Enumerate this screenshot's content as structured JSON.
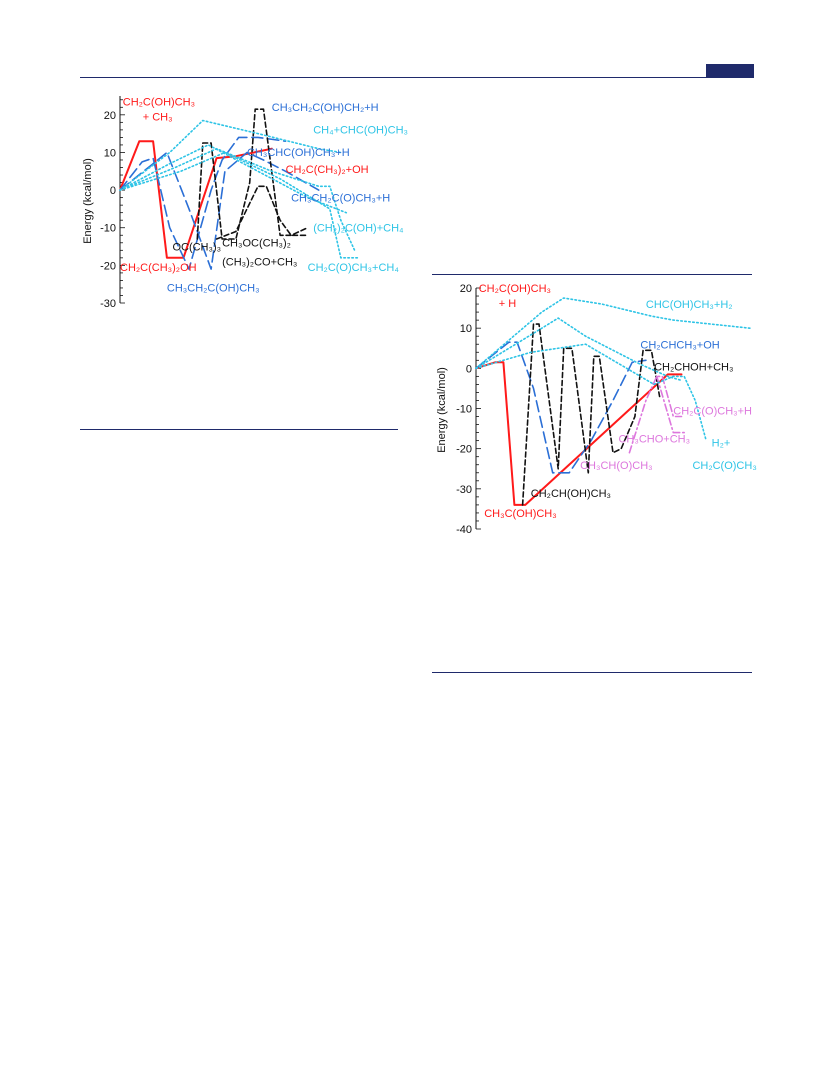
{
  "colors": {
    "red": "#ff1a1a",
    "blue": "#2b6fd6",
    "black": "#111111",
    "cyan": "#2ec4e6",
    "magenta": "#dd77dd",
    "rule": "#1f2a6b"
  },
  "chart_data": [
    {
      "type": "line",
      "ylabel": "Energy (kcal/mol)",
      "ylim": [
        -30,
        25
      ],
      "yticks": [
        20,
        10,
        0,
        -10,
        -20,
        -30
      ],
      "ytick_labels": [
        "20",
        "10",
        "0",
        "-10",
        "-20",
        "-30"
      ],
      "xlim": [
        0,
        100
      ],
      "series": [
        {
          "color": "red",
          "dash": "solid",
          "x": [
            0,
            7,
            12,
            17,
            23,
            35,
            42,
            55
          ],
          "y": [
            0,
            13,
            13,
            -18,
            -18,
            8.5,
            9,
            11
          ]
        },
        {
          "color": "blue",
          "dash": "longdash",
          "x": [
            0,
            8,
            12,
            18,
            25,
            33,
            37,
            43,
            50,
            60
          ],
          "y": [
            0,
            7.5,
            8.5,
            -10,
            -21,
            0,
            8,
            14,
            14,
            13
          ]
        },
        {
          "color": "blue",
          "dash": "longdash",
          "x": [
            0,
            12,
            17,
            25,
            33,
            38,
            46,
            52,
            60,
            72
          ],
          "y": [
            0,
            7,
            10,
            -5,
            -21,
            5,
            10,
            8,
            5,
            0
          ]
        },
        {
          "color": "black",
          "dash": "dash",
          "x": [
            28,
            30,
            33,
            37,
            42,
            47,
            49,
            52,
            58,
            62,
            68
          ],
          "y": [
            -13,
            12.5,
            12.5,
            -13,
            -13,
            2,
            21.5,
            21.5,
            -12,
            -12,
            -10
          ]
        },
        {
          "color": "black",
          "dash": "dash",
          "x": [
            35,
            42,
            50,
            53,
            58,
            62,
            68
          ],
          "y": [
            -13,
            -11,
            1,
            1,
            -8,
            -12,
            -12
          ]
        },
        {
          "color": "cyan",
          "dash": "dot",
          "x": [
            0,
            18,
            30,
            50,
            72,
            80
          ],
          "y": [
            0,
            10,
            18.5,
            15,
            11,
            10
          ]
        },
        {
          "color": "cyan",
          "dash": "dot",
          "x": [
            0,
            18,
            32,
            50,
            68,
            82
          ],
          "y": [
            0,
            7,
            12,
            5,
            -2,
            -6
          ]
        },
        {
          "color": "cyan",
          "dash": "dot",
          "x": [
            0,
            20,
            35,
            55,
            72,
            76,
            80,
            85
          ],
          "y": [
            0,
            6,
            11,
            5,
            1,
            1,
            -8,
            -16
          ]
        },
        {
          "color": "cyan",
          "dash": "dot",
          "x": [
            0,
            22,
            38,
            58,
            76,
            80,
            86
          ],
          "y": [
            0,
            5,
            10,
            3,
            -5,
            -18,
            -18
          ]
        }
      ],
      "annotations": [
        {
          "sub": "CH₂C(OH)CH₃",
          "sub2": "+ CH₃",
          "color": "red",
          "x": 1,
          "y": 22.5
        },
        {
          "sub": "CH₂C(CH₃)₂OH",
          "color": "red",
          "x": 0,
          "y": -21.5
        },
        {
          "sub": "CH₂C(CH₃)₂+OH",
          "color": "red",
          "x": 60,
          "y": 4.5
        },
        {
          "sub": "CH₃CH₂C(OH)CH₂+H",
          "color": "blue",
          "x": 55,
          "y": 21
        },
        {
          "sub": "CH₃CHC(OH)CH₃+H",
          "color": "blue",
          "x": 46,
          "y": 9
        },
        {
          "sub": "CH₃CH₂C(O)CH₃+H",
          "color": "blue",
          "x": 62,
          "y": -3
        },
        {
          "sub": "CH₃CH₂C(OH)CH₃",
          "color": "blue",
          "x": 17,
          "y": -27
        },
        {
          "sub": "CH₄+CHC(OH)CH₃",
          "color": "cyan",
          "x": 70,
          "y": 15
        },
        {
          "sub": "(CH₂)₂C(OH)+CH₄",
          "color": "cyan",
          "x": 70,
          "y": -11
        },
        {
          "sub": "CH₂C(O)CH₃+CH₄",
          "color": "cyan",
          "x": 68,
          "y": -21.5
        },
        {
          "sub": "OC(CH₃)₃",
          "color": "black",
          "x": 19,
          "y": -16
        },
        {
          "sub": "CH₃OC(CH₃)₂",
          "color": "black",
          "x": 37,
          "y": -15
        },
        {
          "sub": "(CH₃)₂CO+CH₃",
          "color": "black",
          "x": 37,
          "y": -20
        }
      ]
    },
    {
      "type": "line",
      "ylabel": "Energy (kcal/mol)",
      "ylim": [
        -40,
        20
      ],
      "yticks": [
        20,
        10,
        0,
        -10,
        -20,
        -30,
        -40
      ],
      "ytick_labels": [
        "20",
        "10",
        "0",
        "-10",
        "-20",
        "-30",
        "-40"
      ],
      "xlim": [
        0,
        100
      ],
      "series": [
        {
          "color": "red",
          "dash": "solid",
          "x": [
            0,
            7,
            10,
            14,
            18,
            70,
            75
          ],
          "y": [
            0,
            1.5,
            1.5,
            -34,
            -34,
            -1.5,
            -1.5
          ]
        },
        {
          "color": "blue",
          "dash": "longdash",
          "x": [
            0,
            12,
            15,
            21,
            28,
            34,
            38,
            42,
            50,
            57,
            62
          ],
          "y": [
            0,
            6.5,
            6.5,
            -5,
            -26,
            -26,
            -22,
            -18,
            -8,
            1.5,
            2
          ]
        },
        {
          "color": "black",
          "dash": "dash",
          "x": [
            17,
            21,
            23,
            30,
            32,
            35,
            41,
            43,
            45,
            50,
            53,
            58,
            61,
            64,
            67
          ],
          "y": [
            -34,
            11,
            11,
            -25,
            5,
            5,
            -26,
            3,
            3,
            -21,
            -20,
            -12,
            4.5,
            4.5,
            -7
          ]
        },
        {
          "color": "magenta",
          "dash": "dashdot",
          "x": [
            56,
            62,
            66,
            68,
            72,
            75
          ],
          "y": [
            -21,
            -8,
            -2,
            -2,
            -12,
            -12
          ]
        },
        {
          "color": "magenta",
          "dash": "dashdot",
          "x": [
            66,
            72,
            76
          ],
          "y": [
            -2,
            -16,
            -16
          ]
        },
        {
          "color": "cyan",
          "dash": "dot",
          "x": [
            0,
            12,
            24,
            32,
            46,
            64,
            72,
            100
          ],
          "y": [
            0,
            7,
            14,
            17.5,
            16,
            13,
            12,
            10
          ]
        },
        {
          "color": "cyan",
          "dash": "dot",
          "x": [
            0,
            12,
            24,
            30,
            40,
            60,
            70,
            75
          ],
          "y": [
            0,
            5,
            10,
            12.5,
            8,
            1,
            -2,
            -3
          ]
        },
        {
          "color": "cyan",
          "dash": "dot",
          "x": [
            0,
            20,
            40,
            65,
            72,
            76,
            80,
            84
          ],
          "y": [
            0,
            4,
            6,
            -4,
            -2,
            -2,
            -8,
            -18
          ]
        }
      ],
      "annotations": [
        {
          "sub": "CH₂C(OH)CH₃",
          "sub2": "+ H",
          "color": "red",
          "x": 1,
          "y": 19
        },
        {
          "sub": "CH₃C(OH)CH₃",
          "color": "red",
          "x": 3,
          "y": -37
        },
        {
          "sub": "CHC(OH)CH₃+H₂",
          "color": "cyan",
          "x": 62,
          "y": 15
        },
        {
          "sub": "CH₂CHCH₃+OH",
          "color": "blue",
          "x": 60,
          "y": 5
        },
        {
          "sub": "CH₂CHOH+CH₃",
          "color": "black",
          "x": 65,
          "y": -0.5
        },
        {
          "sub": "CH₂C(O)CH₃+H",
          "color": "magenta",
          "x": 72,
          "y": -11.5
        },
        {
          "sub": "CH₃CHO+CH₃",
          "color": "magenta",
          "x": 52,
          "y": -18.5
        },
        {
          "sub": "CH₃CH(O)CH₃",
          "color": "magenta",
          "x": 38,
          "y": -25
        },
        {
          "sub": "CH₂CH(OH)CH₃",
          "color": "black",
          "x": 20,
          "y": -32
        },
        {
          "sub": "H₂+",
          "color": "cyan",
          "x": 86,
          "y": -19.5
        },
        {
          "sub": "CH₂C(O)CH₃",
          "color": "cyan",
          "x": 79,
          "y": -25
        }
      ]
    }
  ]
}
